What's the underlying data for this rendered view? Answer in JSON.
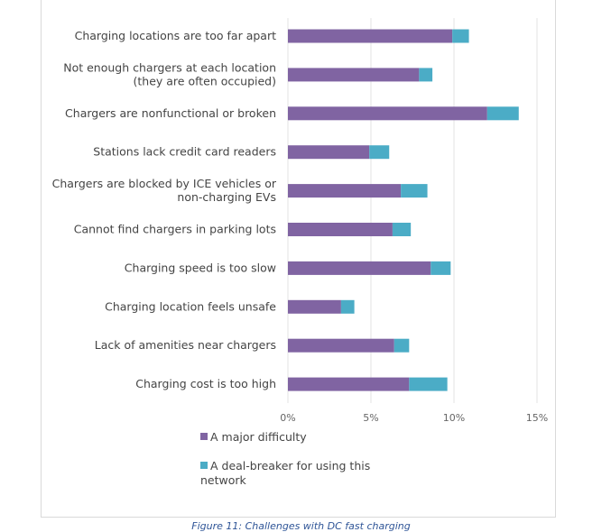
{
  "chart_data": {
    "type": "bar",
    "orientation": "horizontal",
    "stacked": true,
    "categories": [
      "Charging locations are too far apart",
      "Not enough chargers at each location\n(they are often occupied)",
      "Chargers are nonfunctional or broken",
      "Stations lack credit card readers",
      "Chargers are blocked by ICE vehicles or\nnon-charging EVs",
      "Cannot find chargers in parking lots",
      "Charging speed is too slow",
      "Charging location feels unsafe",
      "Lack of amenities near chargers",
      "Charging cost is too high"
    ],
    "series": [
      {
        "name": "A major difficulty",
        "color": "#8064a2",
        "values": [
          9.9,
          7.9,
          12.0,
          4.9,
          6.8,
          6.3,
          8.6,
          3.2,
          6.4,
          7.3
        ]
      },
      {
        "name": "A deal-breaker for using this network",
        "color": "#4bacc6",
        "values": [
          1.0,
          0.8,
          1.9,
          1.2,
          1.6,
          1.1,
          1.2,
          0.8,
          0.9,
          2.3
        ]
      }
    ],
    "xlim": [
      0,
      15
    ],
    "xticks": [
      "0%",
      "5%",
      "10%",
      "15%"
    ],
    "grid": true,
    "legend": "bottom-left"
  },
  "caption": "Figure 11: Challenges with DC fast charging"
}
